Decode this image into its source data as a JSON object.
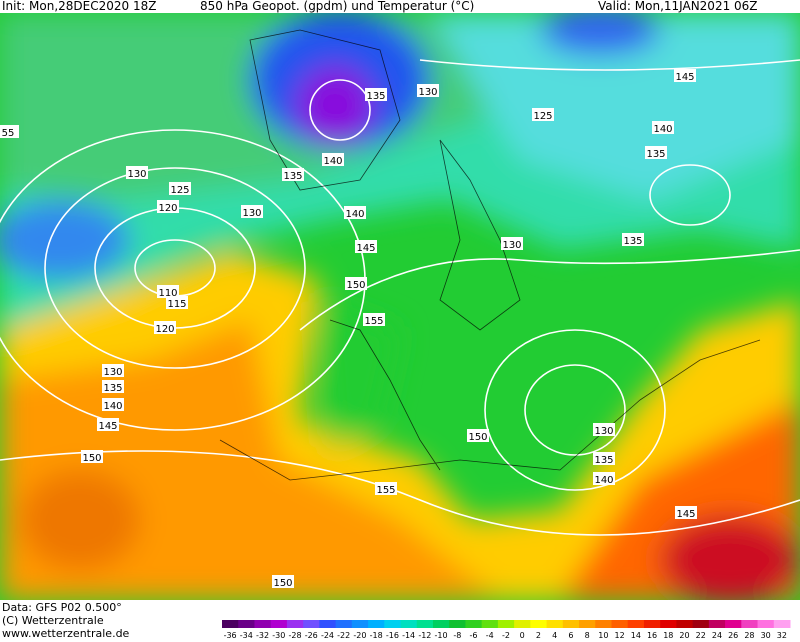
{
  "header": {
    "init": "Init: Mon,28DEC2020 18Z",
    "title": "850 hPa Geopot. (gpdm) und Temperatur (°C)",
    "valid": "Valid: Mon,11JAN2021 06Z"
  },
  "footer": {
    "data": "Data: GFS P02 0.500°",
    "copyright": "(C) Wetterzentrale",
    "url": "www.wetterzentrale.de"
  },
  "contour_labels": [
    "135",
    "130",
    "145",
    "125",
    "140",
    "135",
    "140",
    "135",
    "130",
    "125",
    "120",
    "130",
    "140",
    "130",
    "135",
    "145",
    "150",
    "110",
    "115",
    "155",
    "120",
    "130",
    "135",
    "140",
    "145",
    "150",
    "130",
    "135",
    "140",
    "150",
    "155",
    "145",
    "150",
    "55"
  ],
  "colorbar": {
    "ticks": [
      "-36",
      "-34",
      "-32",
      "-30",
      "-28",
      "-26",
      "-24",
      "-22",
      "-20",
      "-18",
      "-16",
      "-14",
      "-12",
      "-10",
      "-8",
      "-6",
      "-4",
      "-2",
      "0",
      "2",
      "4",
      "6",
      "8",
      "10",
      "12",
      "14",
      "16",
      "18",
      "20",
      "22",
      "24",
      "26",
      "28",
      "30",
      "32"
    ]
  }
}
